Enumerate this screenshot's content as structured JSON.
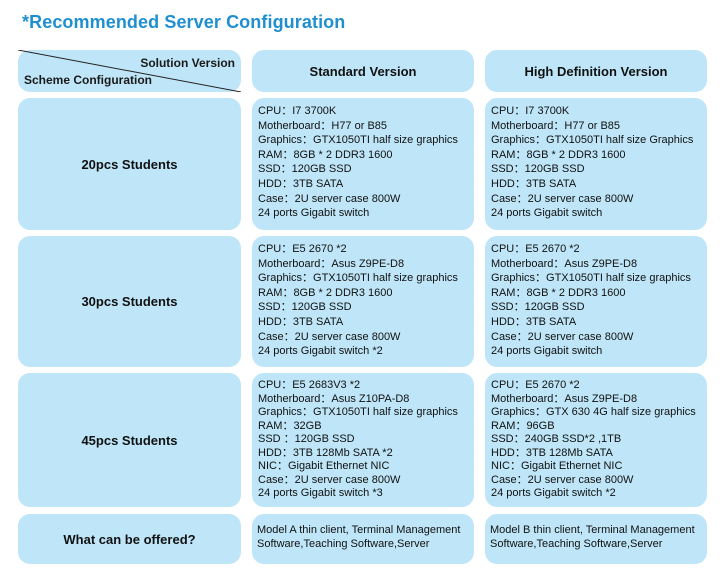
{
  "title": "*Recommended Server Configuration",
  "header": {
    "corner_top": "Solution Version",
    "corner_bottom": "Scheme Configuration",
    "col_standard": "Standard Version",
    "col_hd": "High Definition Version"
  },
  "rows": [
    {
      "label": "20pcs  Students",
      "standard": [
        "CPU：I7 3700K",
        "Motherboard：H77 or B85",
        "Graphics：GTX1050TI half size graphics",
        "RAM：8GB * 2 DDR3 1600",
        "SSD：120GB SSD",
        "HDD：3TB SATA",
        "Case：2U server case 800W",
        "24 ports Gigabit switch"
      ],
      "hd": [
        "CPU：I7 3700K",
        "Motherboard：H77 or B85",
        "Graphics：GTX1050TI half size Graphics",
        "RAM：8GB * 2 DDR3 1600",
        "SSD：120GB SSD",
        "HDD：3TB SATA",
        "Case：2U server case 800W",
        "24 ports Gigabit switch"
      ]
    },
    {
      "label": "30pcs  Students",
      "standard": [
        "CPU：E5 2670 *2",
        "Motherboard：Asus Z9PE-D8",
        "Graphics：GTX1050TI  half size graphics",
        "RAM：8GB * 2 DDR3 1600",
        "SSD：120GB SSD",
        "HDD：3TB SATA",
        "Case：2U server case 800W",
        "24 ports Gigabit switch *2"
      ],
      "hd": [
        "CPU：E5 2670 *2",
        "Motherboard：Asus Z9PE-D8",
        "Graphics：GTX1050TI half size graphics",
        "RAM：8GB * 2 DDR3 1600",
        "SSD：120GB SSD",
        "HDD：3TB SATA",
        "Case：2U server case 800W",
        "24 ports Gigabit switch"
      ]
    },
    {
      "label": "45pcs  Students",
      "standard": [
        "CPU：E5 2683V3 *2",
        "Motherboard：Asus Z10PA-D8",
        "Graphics：GTX1050TI half size graphics",
        "RAM：32GB",
        "SSD ：120GB SSD",
        "HDD：3TB 128Mb SATA *2",
        "NIC：Gigabit Ethernet  NIC",
        "Case：2U server case 800W",
        "24 ports Gigabit switch *3"
      ],
      "hd": [
        "CPU：E5 2670 *2",
        "Motherboard：Asus Z9PE-D8",
        "Graphics：GTX 630 4G half size graphics",
        "RAM：96GB",
        "SSD：240GB SSD*2 ,1TB",
        "HDD：3TB 128Mb SATA",
        "NIC：Gigabit Ethernet  NIC",
        "Case：2U server case 800W",
        "24 ports Gigabit switch *2"
      ]
    }
  ],
  "offer": {
    "label": "What can be offered?",
    "standard": "Model A thin client, Terminal Management Software,Teaching Software,Server",
    "hd": "Model B thin client, Terminal Management Software,Teaching Software,Server"
  },
  "colors": {
    "title": "#1f8fd0",
    "cell_bg": "#bfe6f8"
  }
}
